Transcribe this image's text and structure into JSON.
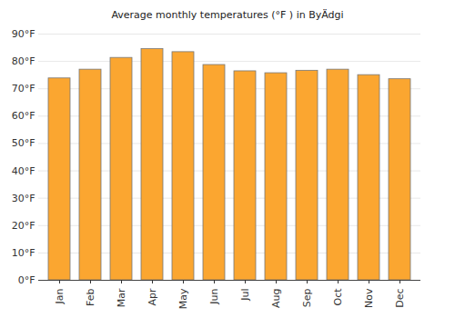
{
  "chart_data": {
    "type": "bar",
    "title": "Average monthly temperatures (°F ) in ByÄdgi",
    "categories": [
      "Jan",
      "Feb",
      "Mar",
      "Apr",
      "May",
      "Jun",
      "Jul",
      "Aug",
      "Sep",
      "Oct",
      "Nov",
      "Dec"
    ],
    "values": [
      73.8,
      77,
      81.3,
      84.5,
      83.4,
      78.7,
      76.4,
      75.7,
      76.6,
      77,
      75,
      73.5
    ],
    "color": "#fba630",
    "ylim": [
      0,
      90
    ],
    "yticks": [
      {
        "value": 0,
        "label": "0°F"
      },
      {
        "value": 10,
        "label": "10°F"
      },
      {
        "value": 20,
        "label": "20°F"
      },
      {
        "value": 30,
        "label": "30°F"
      },
      {
        "value": 40,
        "label": "40°F"
      },
      {
        "value": 50,
        "label": "50°F"
      },
      {
        "value": 60,
        "label": "60°F"
      },
      {
        "value": 70,
        "label": "70°F"
      },
      {
        "value": 80,
        "label": "80°F"
      },
      {
        "value": 90,
        "label": "90°F"
      }
    ],
    "grid": true
  }
}
